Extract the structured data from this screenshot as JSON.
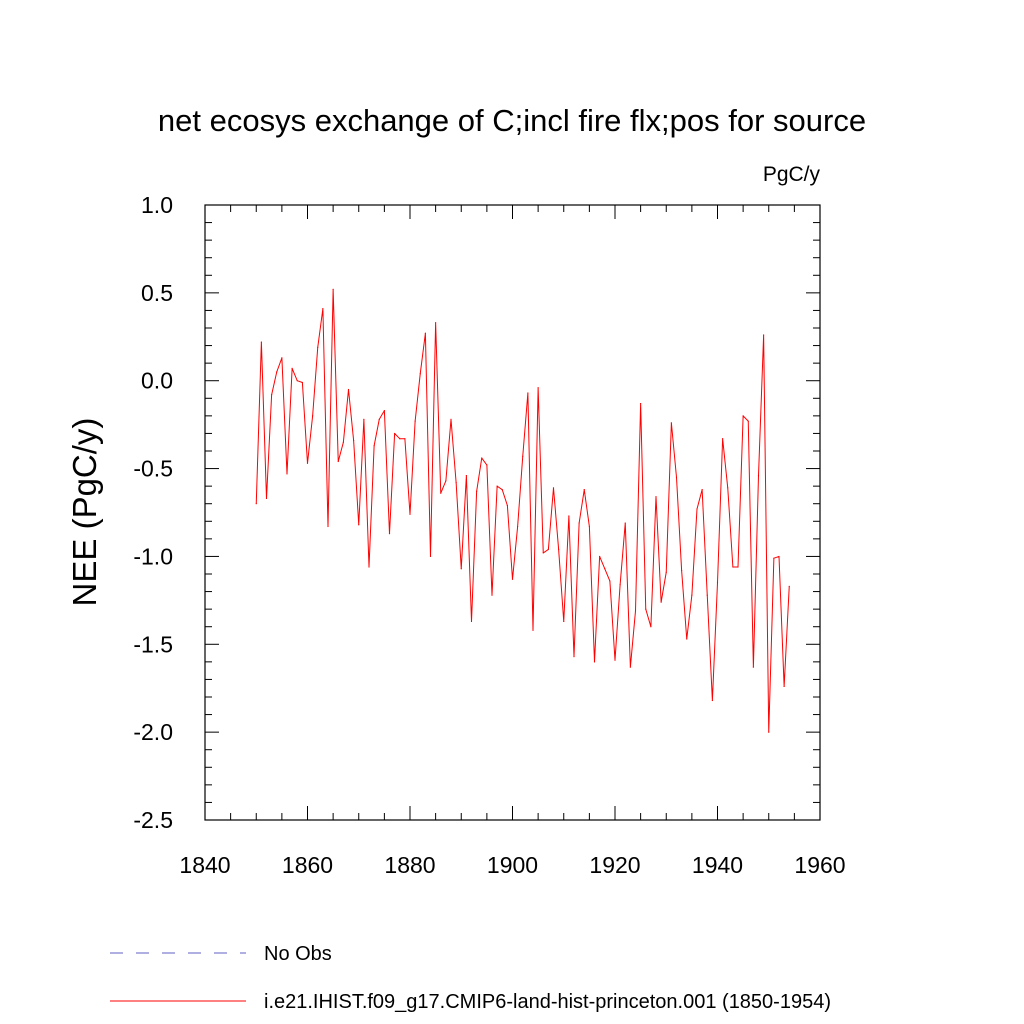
{
  "chart_data": {
    "type": "line",
    "title": "net ecosys exchange of C;incl fire flx;pos for source",
    "units": "PgC/y",
    "ylabel": "NEE  (PgC/y)",
    "xlabel": "",
    "xlim": [
      1840,
      1960
    ],
    "ylim": [
      -2.5,
      1.0
    ],
    "xticks": [
      1840,
      1860,
      1880,
      1900,
      1920,
      1940,
      1960
    ],
    "xtick_labels": [
      "1840",
      "1860",
      "1880",
      "1900",
      "1920",
      "1940",
      "1960"
    ],
    "yticks": [
      1.0,
      0.5,
      0.0,
      -0.5,
      -1.0,
      -1.5,
      -2.0,
      -2.5
    ],
    "ytick_labels": [
      "1.0",
      "0.5",
      "0.0",
      "-0.5",
      "-1.0",
      "-1.5",
      "-2.0",
      "-2.5"
    ],
    "grid": false,
    "legend_position": "bottom",
    "series": [
      {
        "name": "i.e21.IHIST.f09_g17.CMIP6-land-hist-princeton.001 (1850-1954)",
        "color": "#ff0000",
        "dash": "solid",
        "x": [
          1850,
          1851,
          1852,
          1853,
          1854,
          1855,
          1856,
          1857,
          1858,
          1859,
          1860,
          1861,
          1862,
          1863,
          1864,
          1865,
          1866,
          1867,
          1868,
          1869,
          1870,
          1871,
          1872,
          1873,
          1874,
          1875,
          1876,
          1877,
          1878,
          1879,
          1880,
          1881,
          1882,
          1883,
          1884,
          1885,
          1886,
          1887,
          1888,
          1889,
          1890,
          1891,
          1892,
          1893,
          1894,
          1895,
          1896,
          1897,
          1898,
          1899,
          1900,
          1901,
          1902,
          1903,
          1904,
          1905,
          1906,
          1907,
          1908,
          1909,
          1910,
          1911,
          1912,
          1913,
          1914,
          1915,
          1916,
          1917,
          1918,
          1919,
          1920,
          1921,
          1922,
          1923,
          1924,
          1925,
          1926,
          1927,
          1928,
          1929,
          1930,
          1931,
          1932,
          1933,
          1934,
          1935,
          1936,
          1937,
          1938,
          1939,
          1940,
          1941,
          1942,
          1943,
          1944,
          1945,
          1946,
          1947,
          1948,
          1949,
          1950,
          1951,
          1952,
          1953,
          1954
        ],
        "y": [
          -0.7,
          0.22,
          -0.67,
          -0.08,
          0.05,
          0.13,
          -0.53,
          0.07,
          0.0,
          -0.01,
          -0.47,
          -0.2,
          0.19,
          0.41,
          -0.83,
          0.52,
          -0.46,
          -0.35,
          -0.05,
          -0.34,
          -0.82,
          -0.22,
          -1.06,
          -0.37,
          -0.22,
          -0.17,
          -0.87,
          -0.3,
          -0.33,
          -0.33,
          -0.76,
          -0.23,
          0.04,
          0.27,
          -1.0,
          0.33,
          -0.64,
          -0.57,
          -0.22,
          -0.58,
          -1.07,
          -0.54,
          -1.37,
          -0.63,
          -0.44,
          -0.48,
          -1.22,
          -0.6,
          -0.62,
          -0.71,
          -1.13,
          -0.83,
          -0.43,
          -0.07,
          -1.42,
          -0.04,
          -0.98,
          -0.96,
          -0.61,
          -0.96,
          -1.37,
          -0.77,
          -1.57,
          -0.81,
          -0.62,
          -0.83,
          -1.6,
          -1.0,
          -1.07,
          -1.14,
          -1.59,
          -1.16,
          -0.81,
          -1.63,
          -1.31,
          -0.13,
          -1.3,
          -1.4,
          -0.66,
          -1.26,
          -1.09,
          -0.24,
          -0.55,
          -1.08,
          -1.47,
          -1.22,
          -0.73,
          -0.62,
          -1.22,
          -1.82,
          -1.15,
          -0.33,
          -0.61,
          -1.06,
          -1.06,
          -0.2,
          -0.23,
          -1.63,
          -0.54,
          0.26,
          -2.0,
          -1.01,
          -1.0,
          -1.74,
          -1.17
        ]
      }
    ],
    "legend": [
      {
        "label": "No Obs",
        "color": "#7f7fd0",
        "dash": "dashed"
      },
      {
        "label": "i.e21.IHIST.f09_g17.CMIP6-land-hist-princeton.001 (1850-1954)",
        "color": "#ff0000",
        "dash": "solid"
      }
    ]
  }
}
